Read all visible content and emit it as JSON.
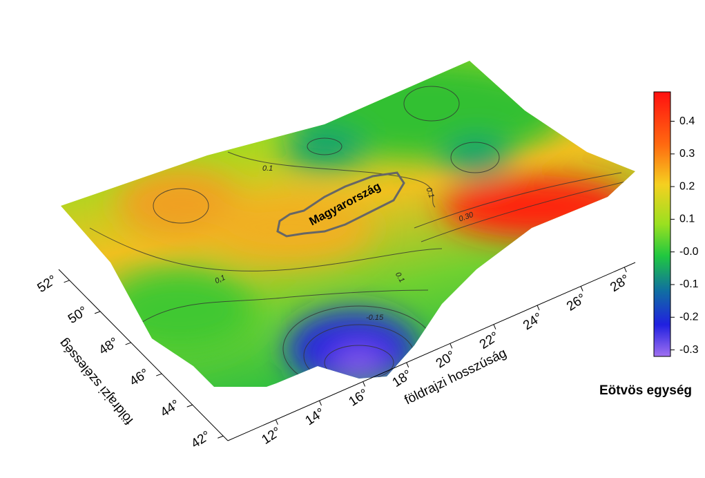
{
  "chart_data": {
    "type": "surface3d",
    "xlabel": "földrajzi hosszúság",
    "ylabel": "földrajzi szélesség",
    "xlim": [
      9.8,
      28.5
    ],
    "xticks": [
      {
        "value": 12,
        "label": "12°"
      },
      {
        "value": 14,
        "label": "14°"
      },
      {
        "value": 16,
        "label": "16°"
      },
      {
        "value": 18,
        "label": "18°"
      },
      {
        "value": 20,
        "label": "20°"
      },
      {
        "value": 22,
        "label": "22°"
      },
      {
        "value": 24,
        "label": "24°"
      },
      {
        "value": 26,
        "label": "26°"
      },
      {
        "value": 28,
        "label": "28°"
      }
    ],
    "ylim": [
      41.7,
      52.7
    ],
    "yticks": [
      {
        "value": 42,
        "label": "42°"
      },
      {
        "value": 44,
        "label": "44°"
      },
      {
        "value": 46,
        "label": "46°"
      },
      {
        "value": 48,
        "label": "48°"
      },
      {
        "value": 50,
        "label": "50°"
      },
      {
        "value": 52,
        "label": "52°"
      }
    ],
    "colorbar": {
      "title": "Eötvös egység",
      "clim": [
        -0.32,
        0.49
      ],
      "ticks": [
        0.4,
        0.3,
        0.2,
        0.1,
        {
          "value": 0,
          "label": "-0.0"
        },
        -0.1,
        -0.2,
        -0.3
      ]
    },
    "region_label": "Magyarország",
    "contour_labels": [
      "0,1",
      "-0.15",
      "0.1",
      "0.1",
      "0.1",
      "0.30"
    ]
  }
}
